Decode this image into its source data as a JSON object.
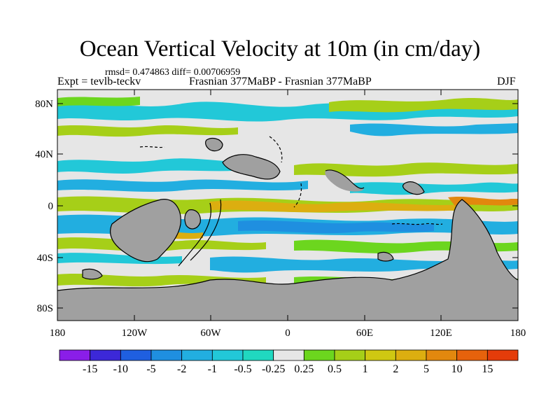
{
  "title": "Ocean Vertical Velocity at 10m (in cm/day)",
  "stats": "rmsd= 0.474863  diff= 0.00706959",
  "experiment": "Expt = tevlb-teckv",
  "subtitle": "Frasnian 377MaBP - Frasnian 377MaBP",
  "season": "DJF",
  "y_ticks": [
    "80N",
    "40N",
    "0",
    "40S",
    "80S"
  ],
  "x_ticks": [
    "180",
    "120W",
    "60W",
    "0",
    "60E",
    "120E",
    "180"
  ],
  "colorbar": {
    "labels": [
      "-15",
      "-10",
      "-5",
      "-2",
      "-1",
      "-0.5",
      "-0.25",
      "0.25",
      "0.5",
      "1",
      "2",
      "5",
      "10",
      "15"
    ],
    "colors": [
      "#8a1ee8",
      "#3c28d8",
      "#1f5fe0",
      "#1f8fe0",
      "#22aee0",
      "#22c8d8",
      "#20d8c0",
      "#e6e6e6",
      "#6cd61e",
      "#a6cf18",
      "#cfc812",
      "#dcae10",
      "#e2880e",
      "#e6620c",
      "#e43c0a"
    ]
  },
  "colors": {
    "land": "#a0a0a0",
    "neutral": "#e6e6e6"
  }
}
